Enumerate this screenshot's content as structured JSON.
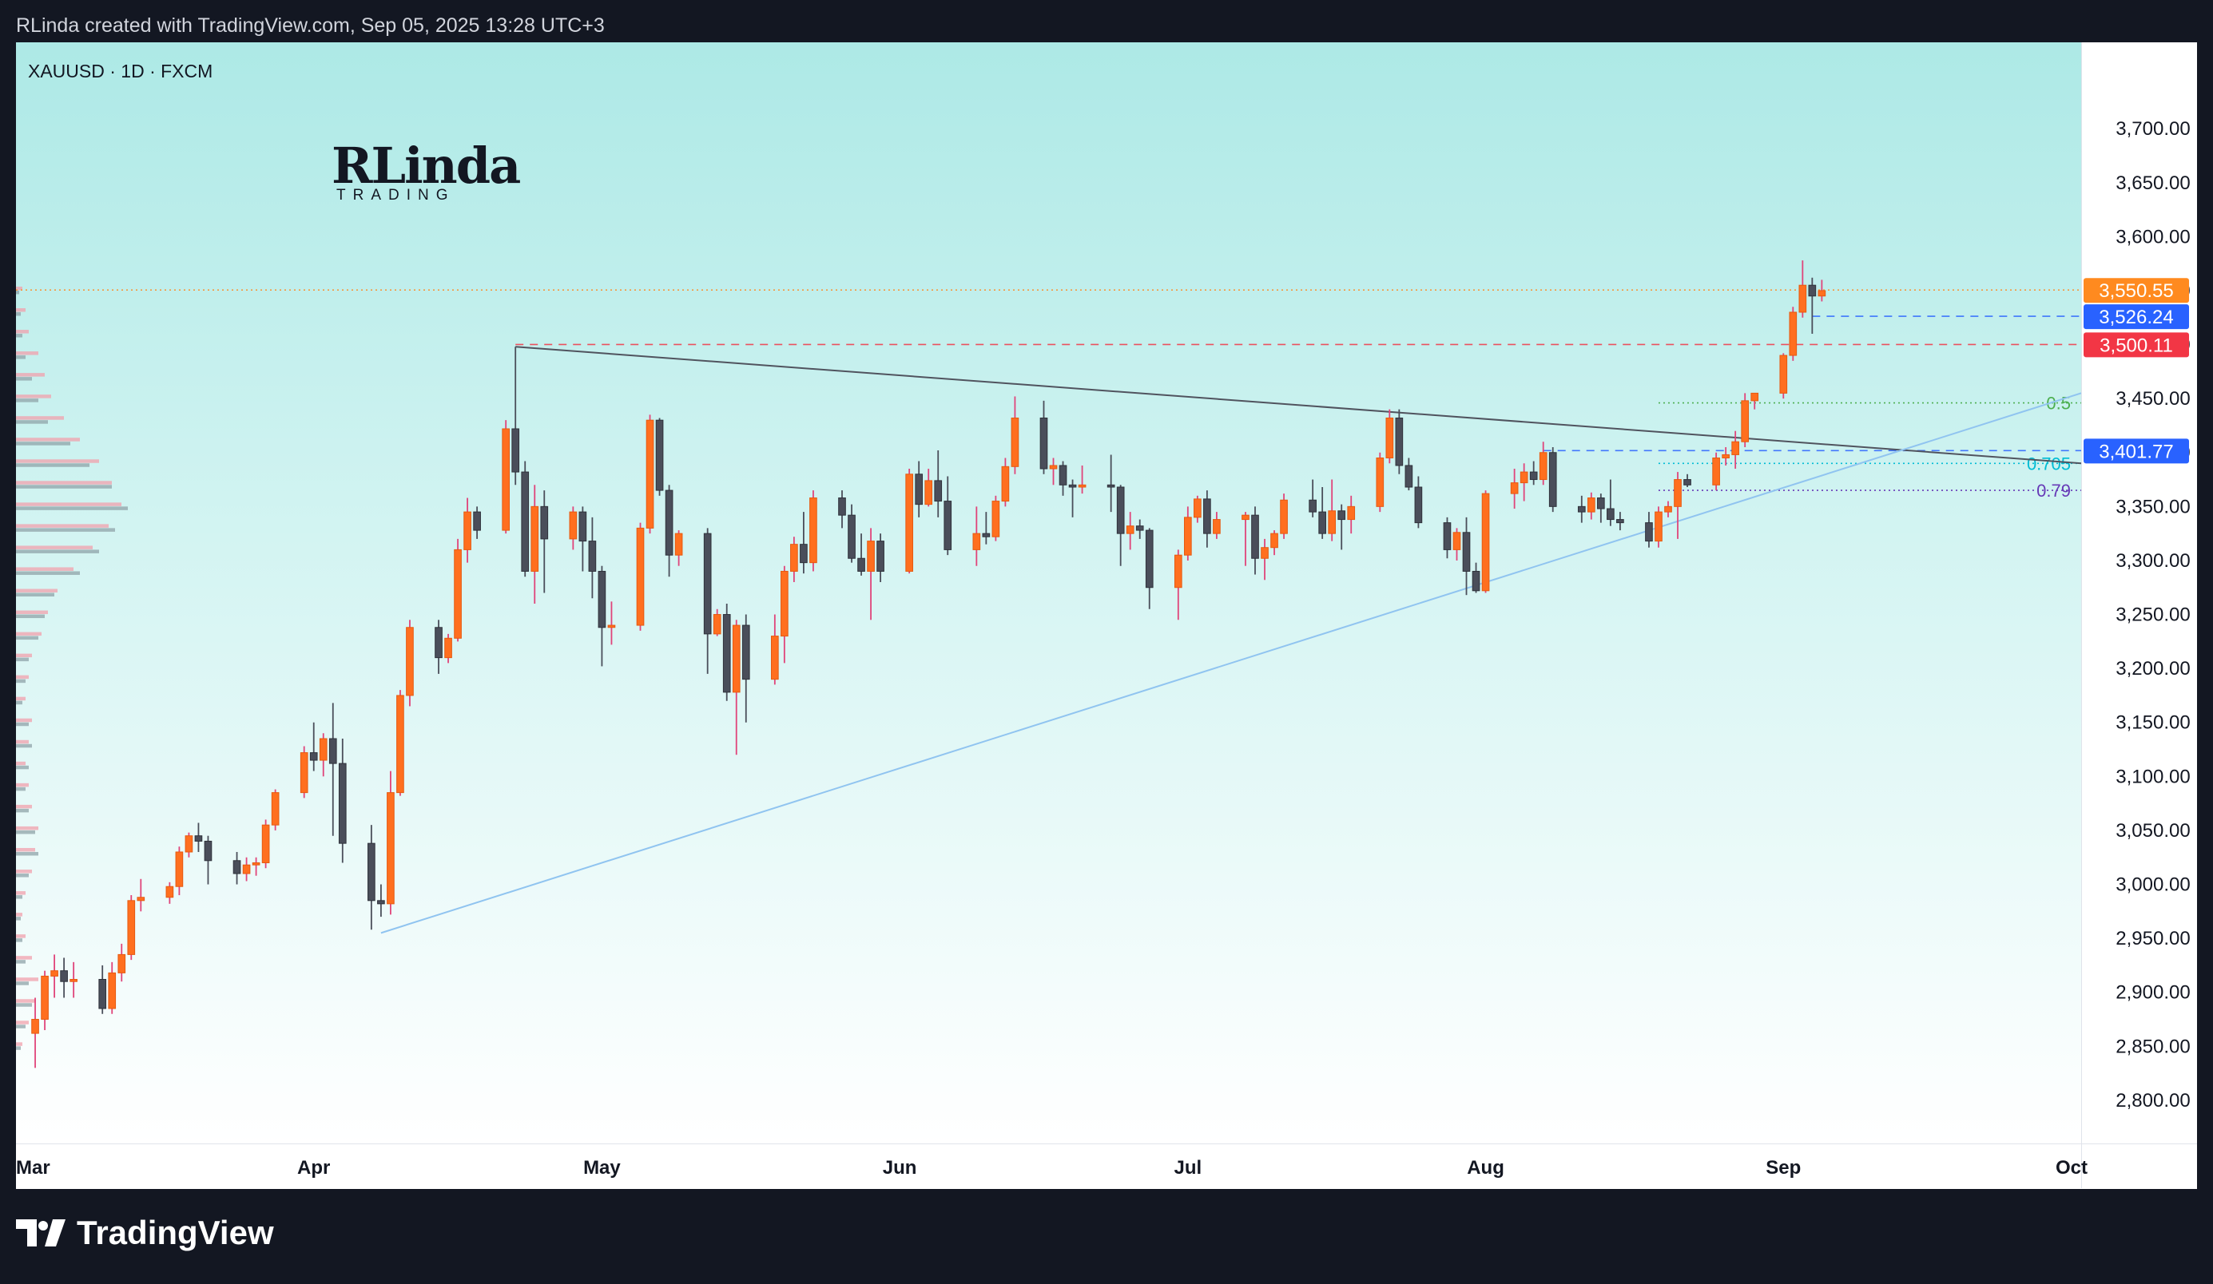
{
  "header": {
    "text": "RLinda created with TradingView.com, Sep 05, 2025 13:28 UTC+3"
  },
  "symbol": {
    "text": "XAUUSD · 1D · FXCM"
  },
  "watermark": {
    "big": "RLinda",
    "small": "TRADING"
  },
  "footer": {
    "brand": "TradingView"
  },
  "colors": {
    "up": "#ff6f1f",
    "down": "#4a4e5a",
    "tag_last": "#ff8a1f",
    "tag_blue": "#2962ff",
    "tag_red": "#f23645"
  },
  "chart_data": {
    "type": "candlestick",
    "title": "XAUUSD · 1D · FXCM",
    "ylim": [
      2760,
      3780
    ],
    "y_ticks": [
      2800,
      2850,
      2900,
      2950,
      3000,
      3050,
      3100,
      3150,
      3200,
      3250,
      3300,
      3350,
      3400,
      3450,
      3500,
      3550,
      3600,
      3650,
      3700
    ],
    "y_tick_labels": [
      "2,800.00",
      "2,850.00",
      "2,900.00",
      "2,950.00",
      "3,000.00",
      "3,050.00",
      "3,100.00",
      "3,150.00",
      "3,200.00",
      "3,250.00",
      "3,300.00",
      "3,350.00",
      "3,400.00",
      "3,450.00",
      "3,500.00",
      "3,550.00",
      "3,600.00",
      "3,650.00",
      "3,700.00"
    ],
    "x_range": [
      "2025-03-01",
      "2025-10-02"
    ],
    "x_ticks": [
      {
        "date": "2025-03-01",
        "label": "Mar"
      },
      {
        "date": "2025-04-01",
        "label": "Apr"
      },
      {
        "date": "2025-05-01",
        "label": "May"
      },
      {
        "date": "2025-06-01",
        "label": "Jun"
      },
      {
        "date": "2025-07-01",
        "label": "Jul"
      },
      {
        "date": "2025-08-01",
        "label": "Aug"
      },
      {
        "date": "2025-09-01",
        "label": "Sep"
      },
      {
        "date": "2025-10-01",
        "label": "Oct"
      }
    ],
    "candles": [
      [
        "2025-03-03",
        2862,
        2895,
        2830,
        2875
      ],
      [
        "2025-03-04",
        2875,
        2920,
        2865,
        2915
      ],
      [
        "2025-03-05",
        2915,
        2935,
        2895,
        2920
      ],
      [
        "2025-03-06",
        2920,
        2932,
        2895,
        2910
      ],
      [
        "2025-03-07",
        2910,
        2928,
        2895,
        2912
      ],
      [
        "2025-03-10",
        2912,
        2925,
        2880,
        2885
      ],
      [
        "2025-03-11",
        2885,
        2928,
        2880,
        2918
      ],
      [
        "2025-03-12",
        2918,
        2945,
        2910,
        2935
      ],
      [
        "2025-03-13",
        2935,
        2990,
        2930,
        2985
      ],
      [
        "2025-03-14",
        2985,
        3005,
        2975,
        2988
      ],
      [
        "2025-03-17",
        2988,
        3002,
        2982,
        2998
      ],
      [
        "2025-03-18",
        2998,
        3035,
        2990,
        3030
      ],
      [
        "2025-03-19",
        3030,
        3048,
        3025,
        3045
      ],
      [
        "2025-03-20",
        3045,
        3057,
        3030,
        3040
      ],
      [
        "2025-03-21",
        3040,
        3045,
        3000,
        3022
      ],
      [
        "2025-03-24",
        3022,
        3030,
        3000,
        3010
      ],
      [
        "2025-03-25",
        3010,
        3025,
        3003,
        3018
      ],
      [
        "2025-03-26",
        3018,
        3025,
        3008,
        3020
      ],
      [
        "2025-03-27",
        3020,
        3060,
        3015,
        3055
      ],
      [
        "2025-03-28",
        3055,
        3088,
        3050,
        3085
      ],
      [
        "2025-03-31",
        3085,
        3128,
        3080,
        3122
      ],
      [
        "2025-04-01",
        3122,
        3150,
        3105,
        3115
      ],
      [
        "2025-04-02",
        3115,
        3140,
        3100,
        3135
      ],
      [
        "2025-04-03",
        3135,
        3168,
        3045,
        3112
      ],
      [
        "2025-04-04",
        3112,
        3135,
        3020,
        3038
      ],
      [
        "2025-04-07",
        3038,
        3055,
        2958,
        2985
      ],
      [
        "2025-04-08",
        2985,
        3000,
        2970,
        2982
      ],
      [
        "2025-04-09",
        2982,
        3105,
        2972,
        3085
      ],
      [
        "2025-04-10",
        3085,
        3180,
        3082,
        3175
      ],
      [
        "2025-04-11",
        3175,
        3245,
        3165,
        3238
      ],
      [
        "2025-04-14",
        3238,
        3245,
        3195,
        3210
      ],
      [
        "2025-04-15",
        3210,
        3232,
        3205,
        3228
      ],
      [
        "2025-04-16",
        3228,
        3320,
        3225,
        3310
      ],
      [
        "2025-04-17",
        3310,
        3358,
        3298,
        3345
      ],
      [
        "2025-04-18",
        3345,
        3350,
        3320,
        3328
      ],
      [
        "2025-04-21",
        3328,
        3430,
        3325,
        3422
      ],
      [
        "2025-04-22",
        3422,
        3498,
        3370,
        3382
      ],
      [
        "2025-04-23",
        3382,
        3392,
        3285,
        3290
      ],
      [
        "2025-04-24",
        3290,
        3370,
        3260,
        3350
      ],
      [
        "2025-04-25",
        3350,
        3365,
        3270,
        3320
      ],
      [
        "2025-04-28",
        3320,
        3350,
        3310,
        3345
      ],
      [
        "2025-04-29",
        3345,
        3350,
        3290,
        3318
      ],
      [
        "2025-04-30",
        3318,
        3340,
        3265,
        3290
      ],
      [
        "2025-05-01",
        3290,
        3295,
        3202,
        3238
      ],
      [
        "2025-05-02",
        3238,
        3262,
        3222,
        3240
      ],
      [
        "2025-05-05",
        3240,
        3335,
        3235,
        3330
      ],
      [
        "2025-05-06",
        3330,
        3435,
        3325,
        3430
      ],
      [
        "2025-05-07",
        3430,
        3432,
        3360,
        3365
      ],
      [
        "2025-05-08",
        3365,
        3370,
        3285,
        3305
      ],
      [
        "2025-05-09",
        3305,
        3328,
        3295,
        3325
      ],
      [
        "2025-05-12",
        3325,
        3330,
        3195,
        3232
      ],
      [
        "2025-05-13",
        3232,
        3255,
        3230,
        3250
      ],
      [
        "2025-05-14",
        3250,
        3260,
        3170,
        3178
      ],
      [
        "2025-05-15",
        3178,
        3245,
        3120,
        3240
      ],
      [
        "2025-05-16",
        3240,
        3250,
        3150,
        3190
      ],
      [
        "2025-05-19",
        3190,
        3250,
        3185,
        3230
      ],
      [
        "2025-05-20",
        3230,
        3295,
        3205,
        3290
      ],
      [
        "2025-05-21",
        3290,
        3322,
        3280,
        3315
      ],
      [
        "2025-05-22",
        3315,
        3345,
        3288,
        3298
      ],
      [
        "2025-05-23",
        3298,
        3365,
        3290,
        3358
      ],
      [
        "2025-05-26",
        3358,
        3365,
        3330,
        3342
      ],
      [
        "2025-05-27",
        3342,
        3352,
        3298,
        3302
      ],
      [
        "2025-05-28",
        3302,
        3325,
        3286,
        3290
      ],
      [
        "2025-05-29",
        3290,
        3330,
        3245,
        3318
      ],
      [
        "2025-05-30",
        3318,
        3325,
        3280,
        3290
      ],
      [
        "2025-06-02",
        3290,
        3385,
        3288,
        3380
      ],
      [
        "2025-06-03",
        3380,
        3392,
        3340,
        3352
      ],
      [
        "2025-06-04",
        3352,
        3385,
        3350,
        3374
      ],
      [
        "2025-06-05",
        3374,
        3402,
        3340,
        3355
      ],
      [
        "2025-06-06",
        3355,
        3378,
        3305,
        3310
      ],
      [
        "2025-06-09",
        3310,
        3350,
        3295,
        3325
      ],
      [
        "2025-06-10",
        3325,
        3345,
        3315,
        3322
      ],
      [
        "2025-06-11",
        3322,
        3360,
        3318,
        3355
      ],
      [
        "2025-06-12",
        3355,
        3395,
        3350,
        3387
      ],
      [
        "2025-06-13",
        3387,
        3452,
        3380,
        3432
      ],
      [
        "2025-06-16",
        3432,
        3448,
        3380,
        3385
      ],
      [
        "2025-06-17",
        3385,
        3395,
        3370,
        3388
      ],
      [
        "2025-06-18",
        3388,
        3392,
        3360,
        3370
      ],
      [
        "2025-06-19",
        3370,
        3375,
        3340,
        3368
      ],
      [
        "2025-06-20",
        3368,
        3388,
        3362,
        3370
      ],
      [
        "2025-06-23",
        3370,
        3398,
        3345,
        3368
      ],
      [
        "2025-06-24",
        3368,
        3370,
        3295,
        3325
      ],
      [
        "2025-06-25",
        3325,
        3345,
        3310,
        3332
      ],
      [
        "2025-06-26",
        3332,
        3338,
        3320,
        3328
      ],
      [
        "2025-06-27",
        3328,
        3330,
        3255,
        3275
      ],
      [
        "2025-06-30",
        3275,
        3310,
        3245,
        3305
      ],
      [
        "2025-07-01",
        3305,
        3350,
        3300,
        3340
      ],
      [
        "2025-07-02",
        3340,
        3360,
        3335,
        3357
      ],
      [
        "2025-07-03",
        3357,
        3365,
        3312,
        3325
      ],
      [
        "2025-07-04",
        3325,
        3345,
        3320,
        3338
      ],
      [
        "2025-07-07",
        3338,
        3345,
        3295,
        3342
      ],
      [
        "2025-07-08",
        3342,
        3350,
        3287,
        3302
      ],
      [
        "2025-07-09",
        3302,
        3320,
        3282,
        3312
      ],
      [
        "2025-07-10",
        3312,
        3328,
        3305,
        3325
      ],
      [
        "2025-07-11",
        3325,
        3362,
        3320,
        3356
      ],
      [
        "2025-07-14",
        3356,
        3375,
        3340,
        3345
      ],
      [
        "2025-07-15",
        3345,
        3368,
        3320,
        3325
      ],
      [
        "2025-07-16",
        3325,
        3375,
        3318,
        3346
      ],
      [
        "2025-07-17",
        3346,
        3352,
        3310,
        3338
      ],
      [
        "2025-07-18",
        3338,
        3360,
        3325,
        3350
      ],
      [
        "2025-07-21",
        3350,
        3400,
        3345,
        3395
      ],
      [
        "2025-07-22",
        3395,
        3440,
        3390,
        3432
      ],
      [
        "2025-07-23",
        3432,
        3440,
        3380,
        3388
      ],
      [
        "2025-07-24",
        3388,
        3395,
        3365,
        3368
      ],
      [
        "2025-07-25",
        3368,
        3378,
        3330,
        3335
      ],
      [
        "2025-07-28",
        3335,
        3340,
        3302,
        3310
      ],
      [
        "2025-07-29",
        3310,
        3330,
        3300,
        3326
      ],
      [
        "2025-07-30",
        3326,
        3340,
        3268,
        3290
      ],
      [
        "2025-07-31",
        3290,
        3298,
        3270,
        3272
      ],
      [
        "2025-08-01",
        3272,
        3365,
        3270,
        3362
      ],
      [
        "2025-08-04",
        3362,
        3385,
        3348,
        3372
      ],
      [
        "2025-08-05",
        3372,
        3390,
        3355,
        3382
      ],
      [
        "2025-08-06",
        3382,
        3392,
        3370,
        3375
      ],
      [
        "2025-08-07",
        3375,
        3410,
        3370,
        3400
      ],
      [
        "2025-08-08",
        3400,
        3405,
        3345,
        3350
      ],
      [
        "2025-08-11",
        3350,
        3360,
        3335,
        3345
      ],
      [
        "2025-08-12",
        3345,
        3363,
        3338,
        3358
      ],
      [
        "2025-08-13",
        3358,
        3362,
        3335,
        3348
      ],
      [
        "2025-08-14",
        3348,
        3375,
        3332,
        3338
      ],
      [
        "2025-08-15",
        3338,
        3345,
        3328,
        3335
      ],
      [
        "2025-08-18",
        3335,
        3345,
        3312,
        3318
      ],
      [
        "2025-08-19",
        3318,
        3350,
        3312,
        3345
      ],
      [
        "2025-08-20",
        3345,
        3355,
        3340,
        3350
      ],
      [
        "2025-08-21",
        3350,
        3382,
        3320,
        3375
      ],
      [
        "2025-08-22",
        3375,
        3380,
        3368,
        3370
      ],
      [
        "2025-08-25",
        3370,
        3400,
        3365,
        3395
      ],
      [
        "2025-08-26",
        3395,
        3405,
        3388,
        3398
      ],
      [
        "2025-08-27",
        3398,
        3420,
        3385,
        3410
      ],
      [
        "2025-08-28",
        3410,
        3455,
        3405,
        3448
      ],
      [
        "2025-08-29",
        3448,
        3455,
        3440,
        3455
      ],
      [
        "2025-09-01",
        3455,
        3492,
        3450,
        3490
      ],
      [
        "2025-09-02",
        3490,
        3535,
        3485,
        3530
      ],
      [
        "2025-09-03",
        3530,
        3578,
        3525,
        3555
      ],
      [
        "2025-09-04",
        3555,
        3562,
        3510,
        3545
      ],
      [
        "2025-09-05",
        3545,
        3560,
        3540,
        3550
      ]
    ],
    "trendlines": [
      {
        "from": [
          "2025-04-22",
          3498
        ],
        "to": [
          "2025-10-02",
          3390
        ],
        "color": "#50535e"
      },
      {
        "from": [
          "2025-04-08",
          2955
        ],
        "to": [
          "2025-10-02",
          3455
        ],
        "color": "#90c4f0"
      }
    ],
    "price_tags": [
      {
        "value": 3550.55,
        "label": "3,550.55",
        "color": "#ff8a1f",
        "line": "dotted"
      },
      {
        "value": 3526.24,
        "label": "3,526.24",
        "color": "#2962ff",
        "line": "dashed",
        "from": "2025-09-04"
      },
      {
        "value": 3500.11,
        "label": "3,500.11",
        "color": "#f23645",
        "line": "dashed",
        "from": "2025-04-22"
      },
      {
        "value": 3401.77,
        "label": "3,401.77",
        "color": "#2962ff",
        "line": "dashed",
        "from": "2025-08-07"
      }
    ],
    "fib_levels": [
      {
        "level": "0.5",
        "value": 3446,
        "color": "#4caf50"
      },
      {
        "level": "0.705",
        "value": 3390,
        "color": "#00bcd4"
      },
      {
        "level": "0.79",
        "value": 3365,
        "color": "#673ab7"
      }
    ],
    "volume_profile": {
      "up_color": "#f2a0ac",
      "down_color": "#8fa3a8",
      "rows": [
        [
          3550,
          4,
          2
        ],
        [
          3530,
          6,
          3
        ],
        [
          3510,
          8,
          4
        ],
        [
          3490,
          14,
          6
        ],
        [
          3470,
          18,
          10
        ],
        [
          3450,
          22,
          14
        ],
        [
          3430,
          30,
          20
        ],
        [
          3410,
          40,
          34
        ],
        [
          3390,
          52,
          46
        ],
        [
          3370,
          60,
          60
        ],
        [
          3350,
          66,
          70
        ],
        [
          3330,
          58,
          62
        ],
        [
          3310,
          48,
          52
        ],
        [
          3290,
          36,
          40
        ],
        [
          3270,
          26,
          24
        ],
        [
          3250,
          20,
          18
        ],
        [
          3230,
          16,
          14
        ],
        [
          3210,
          10,
          8
        ],
        [
          3190,
          8,
          6
        ],
        [
          3170,
          6,
          4
        ],
        [
          3150,
          10,
          8
        ],
        [
          3130,
          8,
          10
        ],
        [
          3110,
          6,
          8
        ],
        [
          3090,
          8,
          6
        ],
        [
          3070,
          10,
          8
        ],
        [
          3050,
          14,
          12
        ],
        [
          3030,
          12,
          14
        ],
        [
          3010,
          10,
          8
        ],
        [
          2990,
          6,
          4
        ],
        [
          2970,
          4,
          3
        ],
        [
          2950,
          6,
          4
        ],
        [
          2930,
          10,
          6
        ],
        [
          2910,
          14,
          8
        ],
        [
          2890,
          12,
          10
        ],
        [
          2870,
          8,
          6
        ],
        [
          2850,
          4,
          3
        ]
      ]
    }
  }
}
